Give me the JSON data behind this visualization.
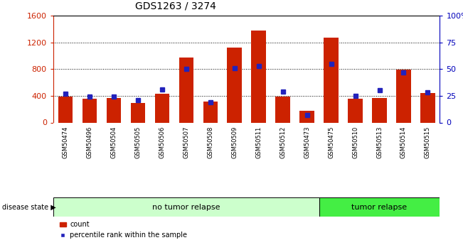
{
  "title": "GDS1263 / 3274",
  "samples": [
    "GSM50474",
    "GSM50496",
    "GSM50504",
    "GSM50505",
    "GSM50506",
    "GSM50507",
    "GSM50508",
    "GSM50509",
    "GSM50511",
    "GSM50512",
    "GSM50473",
    "GSM50475",
    "GSM50510",
    "GSM50513",
    "GSM50514",
    "GSM50515"
  ],
  "counts": [
    390,
    355,
    370,
    295,
    430,
    975,
    310,
    1130,
    1380,
    390,
    175,
    1270,
    355,
    370,
    790,
    440
  ],
  "percentiles": [
    27,
    24,
    24,
    21,
    31,
    50,
    19,
    51,
    53,
    29,
    7,
    55,
    25,
    30,
    47,
    28
  ],
  "no_tumor_count": 11,
  "group1_label": "no tumor relapse",
  "group2_label": "tumor relapse",
  "disease_state_label": "disease state",
  "legend_count": "count",
  "legend_percentile": "percentile rank within the sample",
  "bar_color": "#cc2200",
  "square_color": "#2222bb",
  "no_tumor_bg": "#ccffcc",
  "tumor_bg": "#44ee44",
  "sample_bg": "#d0d0d0",
  "ylim_left": [
    0,
    1600
  ],
  "ylim_right": [
    0,
    100
  ],
  "yticks_left": [
    0,
    400,
    800,
    1200,
    1600
  ],
  "yticks_right": [
    0,
    25,
    50,
    75,
    100
  ],
  "title_fontsize": 10,
  "axis_color_left": "#cc2200",
  "axis_color_right": "#0000bb"
}
